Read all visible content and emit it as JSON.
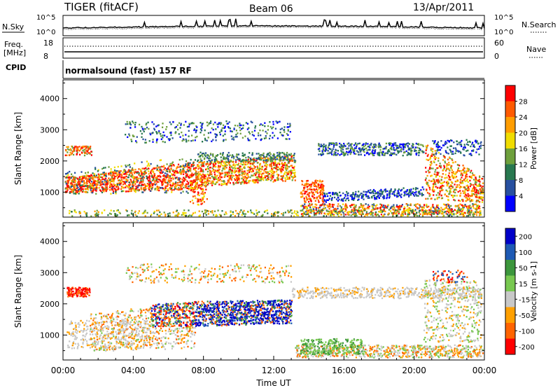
{
  "header": {
    "title": "TIGER (fitACF)",
    "beam": "Beam 06",
    "date": "13/Apr/2011"
  },
  "noise_panel": {
    "left_label": "N.Sky",
    "right_label": "N.Search",
    "left_ticks": [
      "10^5",
      "10^0"
    ],
    "right_ticks": [
      "10^5",
      "10^0"
    ]
  },
  "freq_panel": {
    "left_label_line1": "Freq.",
    "left_label_line2": "[MHz]",
    "right_label": "Nave",
    "left_ticks": [
      "18",
      "8"
    ],
    "right_ticks": [
      "60",
      "0"
    ]
  },
  "cpid_panel": {
    "label": "CPID",
    "text": "normalsound (fast) 157 RF"
  },
  "power_panel": {
    "ylabel": "Slant Range [km]",
    "colorbar_label": "Power [dB]",
    "colorbar_ticks": [
      "28",
      "24",
      "20",
      "16",
      "12",
      "8",
      "4"
    ],
    "colors": [
      "#ff0000",
      "#ff5a00",
      "#ff9d00",
      "#f0dc00",
      "#6ea03c",
      "#287850",
      "#2850a0",
      "#0000ff"
    ]
  },
  "velocity_panel": {
    "ylabel": "Slant Range [km]",
    "colorbar_label": "Velocity [m s-1]",
    "colorbar_ticks": [
      "200",
      "100",
      "50",
      "15",
      "-15",
      "-50",
      "-100",
      "-200"
    ],
    "colors": [
      "#0000c8",
      "#1e5ab4",
      "#3c963c",
      "#78c850",
      "#c8c8c8",
      "#ffa000",
      "#ff6400",
      "#ff0000"
    ]
  },
  "xaxis": {
    "label": "Time UT",
    "ticks": [
      "00:00",
      "04:00",
      "08:00",
      "12:00",
      "16:00",
      "20:00",
      "00:00"
    ]
  },
  "chart_data": {
    "type": "heatmap",
    "title": "TIGER (fitACF)",
    "xlabel": "Time UT",
    "ylabel": "Slant Range [km]",
    "x_ticks": [
      "00:00",
      "04:00",
      "08:00",
      "12:00",
      "16:00",
      "20:00",
      "00:00"
    ],
    "y_ticks": [
      1000,
      2000,
      3000,
      4000
    ],
    "ylim": [
      200,
      4600
    ],
    "power_colorbar_range_dB": [
      0,
      32
    ],
    "velocity_colorbar_range_ms": [
      -250,
      250
    ]
  }
}
